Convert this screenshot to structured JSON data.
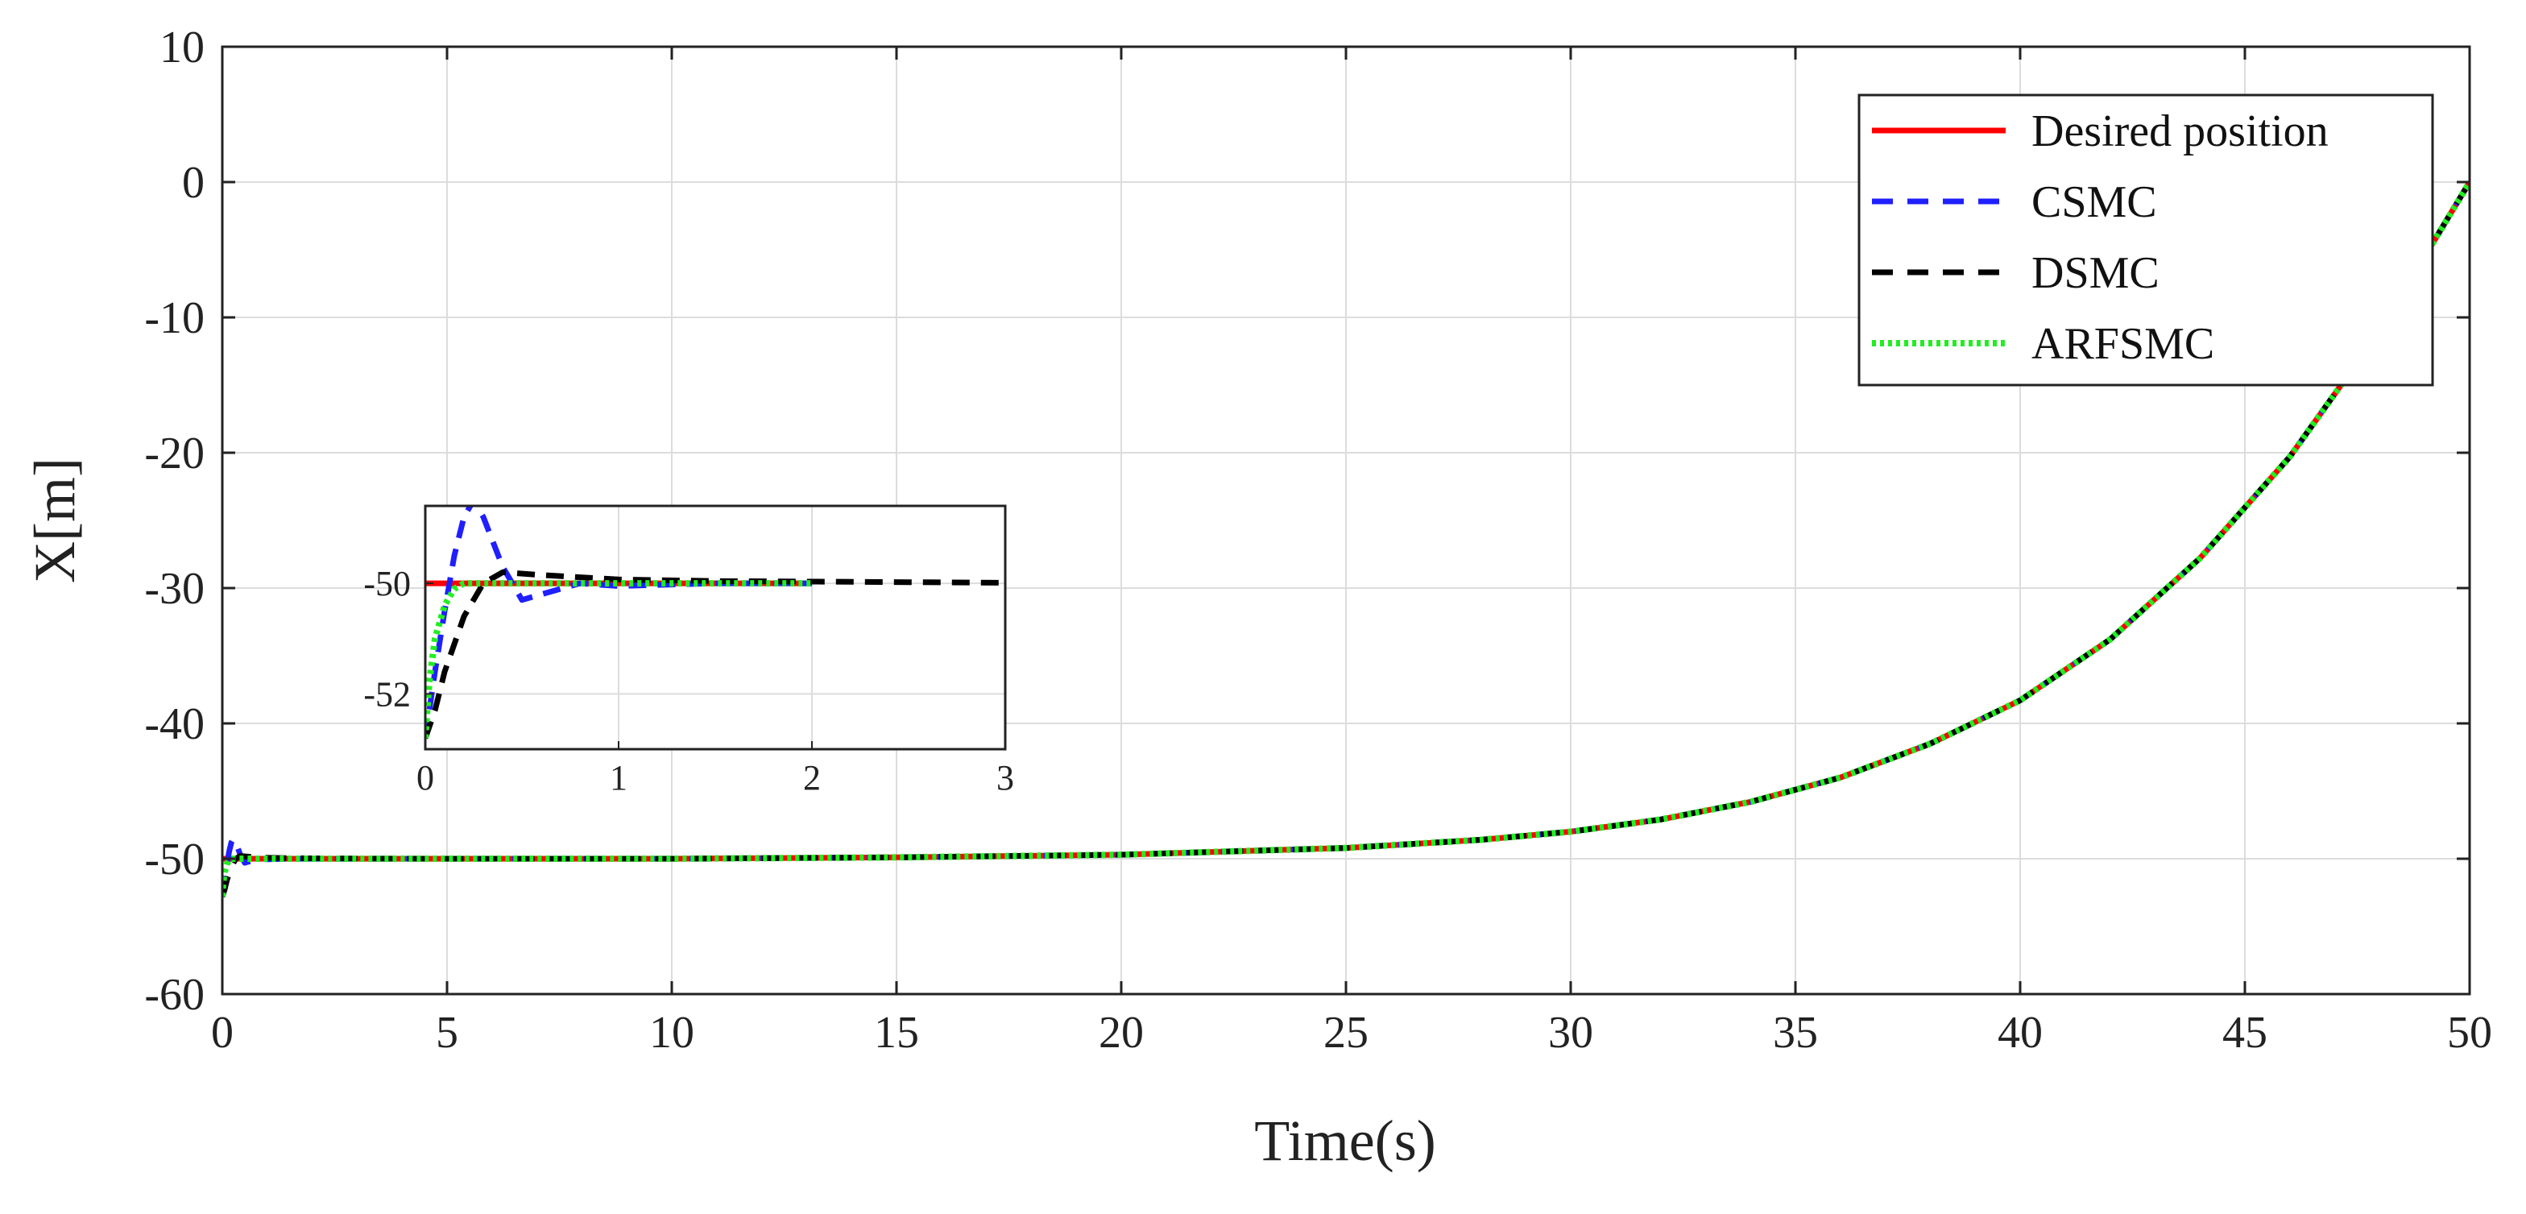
{
  "chart_data": {
    "type": "line",
    "title": "",
    "xlabel": "Time(s)",
    "ylabel": "X[m]",
    "xlim": [
      0,
      50
    ],
    "ylim": [
      -60,
      10
    ],
    "xticks": [
      "0",
      "5",
      "10",
      "15",
      "20",
      "25",
      "30",
      "35",
      "40",
      "45",
      "50"
    ],
    "yticks": [
      "10",
      "0",
      "-10",
      "-20",
      "-30",
      "-40",
      "-50",
      "-60"
    ],
    "grid": true,
    "legend_position": "top-right",
    "series": [
      {
        "name": "Desired position",
        "color": "#ff0000",
        "style": "solid",
        "x": [
          0,
          2,
          5,
          10,
          15,
          20,
          25,
          28,
          30,
          32,
          34,
          36,
          38,
          40,
          42,
          44,
          46,
          48,
          50
        ],
        "y": [
          -50,
          -50,
          -50,
          -50,
          -49.9,
          -49.7,
          -49.2,
          -48.6,
          -48.0,
          -47.1,
          -45.8,
          -44.0,
          -41.5,
          -38.3,
          -33.8,
          -27.8,
          -20.3,
          -11.0,
          0
        ]
      },
      {
        "name": "CSMC",
        "color": "#1f1fff",
        "style": "dashed",
        "x": [
          0,
          0.05,
          0.1,
          0.15,
          0.2,
          0.25,
          0.3,
          0.4,
          0.5,
          0.6,
          0.8,
          1.0,
          1.5,
          2,
          5,
          10,
          15,
          20,
          25,
          28,
          30,
          32,
          34,
          36,
          38,
          40,
          42,
          44,
          46,
          48,
          50
        ],
        "y": [
          -52.8,
          -51.6,
          -50.5,
          -49.5,
          -48.8,
          -48.5,
          -48.8,
          -49.7,
          -50.3,
          -50.2,
          -50.0,
          -50.05,
          -50.0,
          -50,
          -50,
          -50,
          -49.9,
          -49.7,
          -49.2,
          -48.6,
          -48.0,
          -47.1,
          -45.8,
          -44.0,
          -41.5,
          -38.3,
          -33.8,
          -27.8,
          -20.3,
          -11.0,
          0
        ]
      },
      {
        "name": "DSMC",
        "color": "#000000",
        "style": "dashed",
        "x": [
          0,
          0.05,
          0.1,
          0.2,
          0.3,
          0.4,
          0.6,
          1.0,
          1.5,
          2,
          3,
          5,
          10,
          15,
          20,
          25,
          28,
          30,
          32,
          34,
          36,
          38,
          40,
          42,
          44,
          46,
          48,
          50
        ],
        "y": [
          -52.8,
          -52.3,
          -51.6,
          -50.6,
          -50.0,
          -49.8,
          -49.85,
          -49.93,
          -49.96,
          -49.97,
          -49.99,
          -50,
          -50,
          -49.9,
          -49.7,
          -49.2,
          -48.6,
          -48.0,
          -47.1,
          -45.8,
          -44.0,
          -41.5,
          -38.3,
          -33.8,
          -27.8,
          -20.3,
          -11.0,
          0
        ]
      },
      {
        "name": "ARFSMC",
        "color": "#22ee22",
        "style": "dotted",
        "x": [
          0,
          0.02,
          0.05,
          0.1,
          0.15,
          0.2,
          0.3,
          0.5,
          1.0,
          2,
          5,
          10,
          15,
          20,
          25,
          28,
          30,
          32,
          34,
          36,
          38,
          40,
          42,
          44,
          46,
          48,
          50
        ],
        "y": [
          -52.8,
          -51.8,
          -51.0,
          -50.4,
          -50.1,
          -50.0,
          -50.0,
          -50.0,
          -50.0,
          -50,
          -50,
          -50,
          -49.9,
          -49.7,
          -49.2,
          -48.6,
          -48.0,
          -47.1,
          -45.8,
          -44.0,
          -41.5,
          -38.3,
          -33.8,
          -27.8,
          -20.3,
          -11.0,
          0
        ]
      }
    ],
    "inset": {
      "xlim": [
        0,
        3
      ],
      "ylim": [
        -53,
        -48.6
      ],
      "xticks": [
        "0",
        "1",
        "2",
        "3"
      ],
      "yticks": [
        "-50",
        "-52"
      ],
      "grid": true
    }
  }
}
